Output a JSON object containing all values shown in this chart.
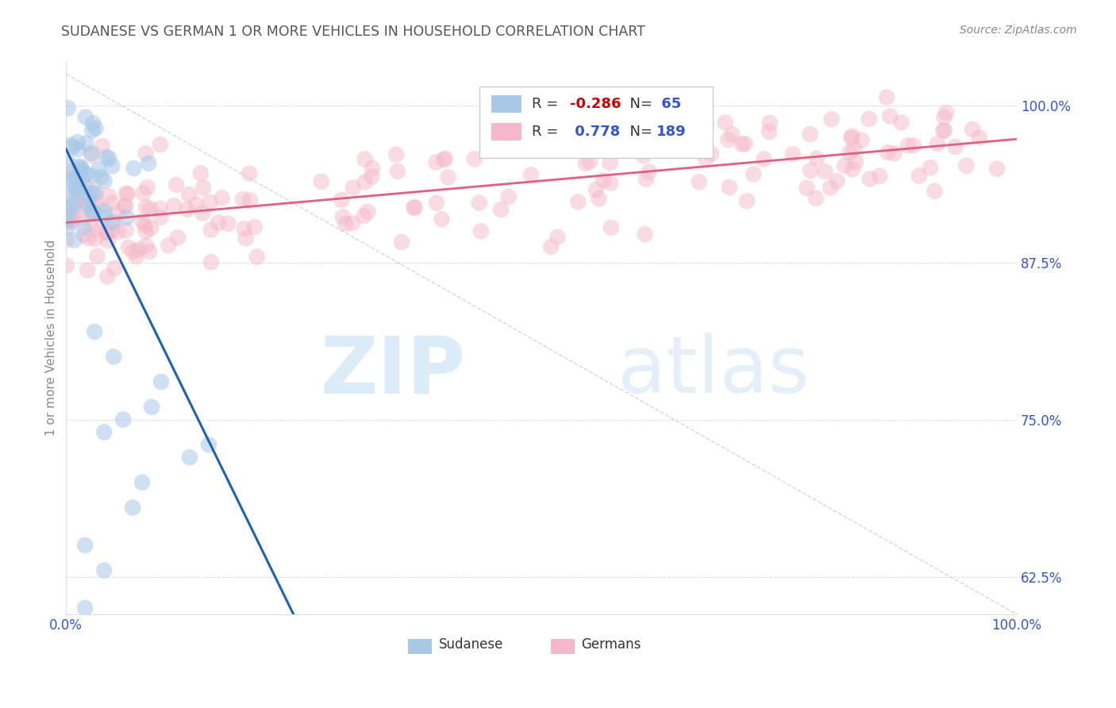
{
  "title": "SUDANESE VS GERMAN 1 OR MORE VEHICLES IN HOUSEHOLD CORRELATION CHART",
  "source_text": "Source: ZipAtlas.com",
  "ylabel": "1 or more Vehicles in Household",
  "xlim": [
    0.0,
    1.0
  ],
  "ylim": [
    0.595,
    1.035
  ],
  "x_ticks": [
    0.0,
    1.0
  ],
  "x_tick_labels": [
    "0.0%",
    "100.0%"
  ],
  "y_ticks": [
    0.625,
    0.75,
    0.875,
    1.0
  ],
  "y_tick_labels": [
    "62.5%",
    "75.0%",
    "87.5%",
    "100.0%"
  ],
  "sudanese_R": -0.286,
  "sudanese_N": 65,
  "german_R": 0.778,
  "german_N": 189,
  "sudanese_color": "#a8c8e8",
  "german_color": "#f4b8c8",
  "sudanese_line_color": "#2060b0",
  "german_line_color": "#e06080",
  "legend_sudanese_label": "Sudanese",
  "legend_german_label": "Germans",
  "watermark_zip": "ZIP",
  "watermark_atlas": "atlas",
  "background_color": "#ffffff",
  "grid_color": "#cccccc",
  "title_color": "#555555",
  "axis_label_color": "#888888",
  "tick_label_color": "#3355cc",
  "seed": 12
}
